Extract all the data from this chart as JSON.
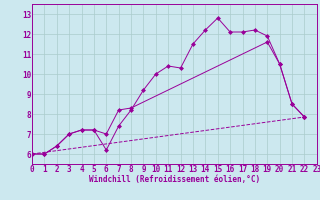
{
  "xlabel": "Windchill (Refroidissement éolien,°C)",
  "bg_color": "#cce8ef",
  "line_color": "#990099",
  "grid_color": "#aacccc",
  "xlim": [
    0,
    23
  ],
  "ylim": [
    5.5,
    13.5
  ],
  "xticks": [
    0,
    1,
    2,
    3,
    4,
    5,
    6,
    7,
    8,
    9,
    10,
    11,
    12,
    13,
    14,
    15,
    16,
    17,
    18,
    19,
    20,
    21,
    22,
    23
  ],
  "yticks": [
    6,
    7,
    8,
    9,
    10,
    11,
    12,
    13
  ],
  "line1_x": [
    0,
    1,
    2,
    3,
    4,
    5,
    6,
    7,
    8,
    9,
    10,
    11,
    12,
    13,
    14,
    15,
    16,
    17,
    18,
    19,
    20,
    21,
    22
  ],
  "line1_y": [
    6.0,
    6.0,
    6.4,
    7.0,
    7.2,
    7.2,
    6.2,
    7.4,
    8.2,
    9.2,
    10.0,
    10.4,
    10.3,
    11.5,
    12.2,
    12.8,
    12.1,
    12.1,
    12.2,
    11.9,
    10.5,
    8.5,
    7.85
  ],
  "line2_x": [
    0,
    22
  ],
  "line2_y": [
    6.0,
    7.85
  ],
  "line3_x": [
    0,
    1,
    2,
    3,
    4,
    5,
    6,
    7,
    8,
    19,
    20,
    21,
    22
  ],
  "line3_y": [
    6.0,
    6.0,
    6.4,
    7.0,
    7.2,
    7.2,
    7.0,
    8.2,
    8.3,
    11.6,
    10.5,
    8.5,
    7.85
  ]
}
